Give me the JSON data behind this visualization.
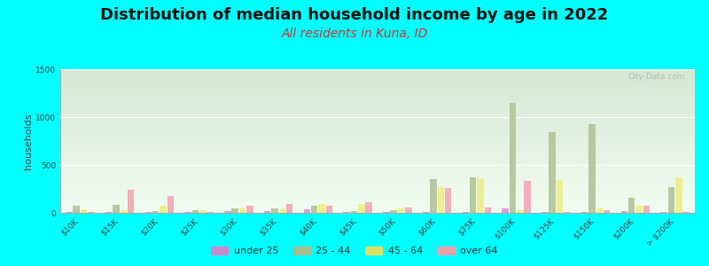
{
  "title": "Distribution of median household income by age in 2022",
  "subtitle": "All residents in Kuna, ID",
  "ylabel": "households",
  "background_color": "#00FFFF",
  "ylim": [
    0,
    1500
  ],
  "yticks": [
    0,
    500,
    1000,
    1500
  ],
  "categories": [
    "$10K",
    "$15K",
    "$20K",
    "$25K",
    "$30K",
    "$35K",
    "$40K",
    "$45K",
    "$50K",
    "$60K",
    "$75K",
    "$100K",
    "$125K",
    "$150K",
    "$200K",
    "> $200K"
  ],
  "series": {
    "under 25": [
      10,
      10,
      5,
      5,
      20,
      15,
      40,
      8,
      5,
      10,
      8,
      50,
      5,
      5,
      15,
      8
    ],
    "25 - 44": [
      70,
      85,
      15,
      28,
      42,
      48,
      75,
      18,
      32,
      355,
      370,
      1150,
      840,
      930,
      155,
      270
    ],
    "45 - 64": [
      38,
      28,
      75,
      32,
      48,
      38,
      88,
      88,
      42,
      265,
      365,
      28,
      345,
      48,
      72,
      375
    ],
    "over 64": [
      5,
      240,
      180,
      8,
      78,
      88,
      78,
      108,
      58,
      255,
      52,
      335,
      8,
      28,
      78,
      5
    ]
  },
  "colors": {
    "under 25": "#d9a0d9",
    "25 - 44": "#b8c8a0",
    "45 - 64": "#eeee90",
    "over 64": "#f0b0b8"
  },
  "legend_marker_colors": {
    "under 25": "#cc88cc",
    "25 - 44": "#a8bc8c",
    "45 - 64": "#e0e060",
    "over 64": "#f0a0a8"
  },
  "watermark": "City-Data.com",
  "title_fontsize": 13,
  "subtitle_fontsize": 10,
  "ylabel_fontsize": 8,
  "tick_fontsize": 6.5
}
